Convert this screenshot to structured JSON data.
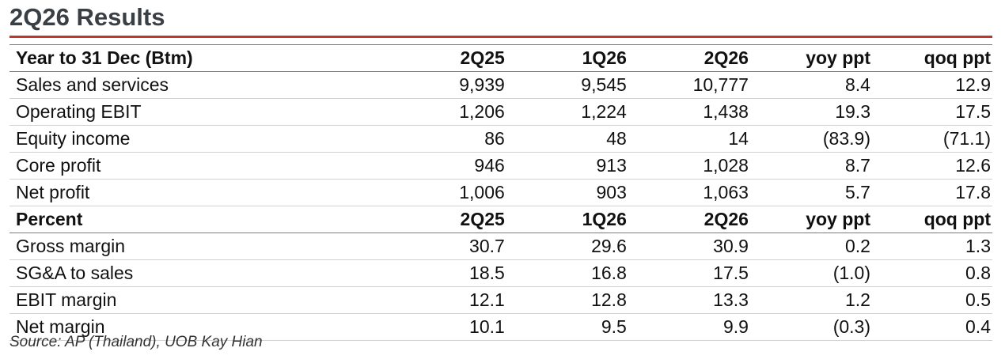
{
  "title": "2Q26 Results",
  "accent_color": "#c0362c",
  "section1": {
    "header": [
      "Year to 31 Dec (Btm)",
      "2Q25",
      "1Q26",
      "2Q26",
      "yoy ppt",
      "qoq ppt"
    ],
    "rows": [
      [
        "Sales and services",
        "9,939",
        "9,545",
        "10,777",
        "8.4",
        "12.9"
      ],
      [
        "Operating EBIT",
        "1,206",
        "1,224",
        "1,438",
        "19.3",
        "17.5"
      ],
      [
        "Equity income",
        "86",
        "48",
        "14",
        "(83.9)",
        "(71.1)"
      ],
      [
        "Core profit",
        "946",
        "913",
        "1,028",
        "8.7",
        "12.6"
      ],
      [
        "Net profit",
        "1,006",
        "903",
        "1,063",
        "5.7",
        "17.8"
      ]
    ]
  },
  "section2": {
    "header": [
      "Percent",
      "2Q25",
      "1Q26",
      "2Q26",
      "yoy ppt",
      "qoq ppt"
    ],
    "rows": [
      [
        "Gross margin",
        "30.7",
        "29.6",
        "30.9",
        "0.2",
        "1.3"
      ],
      [
        "SG&A to sales",
        "18.5",
        "16.8",
        "17.5",
        "(1.0)",
        "0.8"
      ],
      [
        "EBIT margin",
        "12.1",
        "12.8",
        "13.3",
        "1.2",
        "0.5"
      ],
      [
        "Net margin",
        "10.1",
        "9.5",
        "9.9",
        "(0.3)",
        "0.4"
      ]
    ]
  },
  "source": "Source: AP (Thailand), UOB Kay Hian"
}
